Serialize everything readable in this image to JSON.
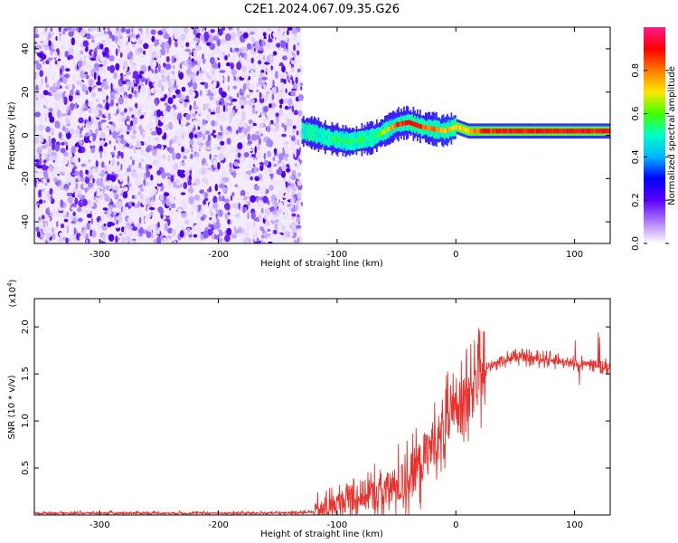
{
  "title": "C2E1.2024.067.09.35.G26",
  "colors": {
    "snr_line": "#e8302c",
    "colormap": [
      "#ffffff",
      "#e6d6ff",
      "#a070ff",
      "#5a00ff",
      "#0000ff",
      "#00b4ff",
      "#00ffb0",
      "#40ff00",
      "#ffe600",
      "#ff7a00",
      "#ff0000",
      "#ff1a8c"
    ]
  },
  "chart_data": [
    {
      "type": "heatmap",
      "title": "",
      "xlabel": "Height of straight line (km)",
      "ylabel": "Frequency (Hz)",
      "xlim": [
        -355,
        130
      ],
      "ylim": [
        -50,
        50
      ],
      "xticks": [
        -300,
        -200,
        -100,
        0,
        100
      ],
      "yticks": [
        -40,
        -20,
        0,
        20,
        40
      ],
      "colorbar": {
        "label": "Normalized spectral amplitude",
        "range": [
          0,
          1
        ],
        "ticks": [
          0.0,
          0.2,
          0.4,
          0.6,
          0.8
        ]
      },
      "noise_region_x": [
        -355,
        -130
      ],
      "ridge": {
        "x": [
          -130,
          -120,
          -110,
          -100,
          -90,
          -80,
          -70,
          -60,
          -50,
          -40,
          -30,
          -20,
          -10,
          0,
          10,
          20,
          40,
          60,
          80,
          100,
          120,
          130
        ],
        "freq": [
          2,
          1,
          -1,
          -2,
          -3,
          -2,
          -1,
          2,
          5,
          6,
          4,
          3,
          2,
          4,
          2,
          2,
          2,
          2,
          2,
          2,
          2,
          2
        ],
        "amplitude": [
          0.45,
          0.5,
          0.5,
          0.55,
          0.55,
          0.55,
          0.55,
          0.65,
          0.85,
          0.9,
          0.85,
          0.8,
          0.75,
          0.7,
          0.75,
          0.85,
          0.9,
          0.9,
          0.9,
          0.9,
          0.9,
          0.9
        ]
      }
    },
    {
      "type": "line",
      "title": "",
      "xlabel": "Height of straight line (km)",
      "ylabel": "SNR (10 * v/v)",
      "y_scale_label": "(x10",
      "y_scale_exp": "4",
      "y_scale_close": ")",
      "xlim": [
        -355,
        130
      ],
      "ylim": [
        0,
        2.3
      ],
      "xticks": [
        -300,
        -200,
        -100,
        0,
        100
      ],
      "yticks": [
        0.5,
        1.0,
        1.5,
        2.0
      ],
      "yticklabels": [
        "0.5",
        "1.0",
        "1.5",
        "2.0"
      ],
      "series": [
        {
          "x": [
            -355,
            -300,
            -250,
            -200,
            -150,
            -120,
            -110,
            -100,
            -90,
            -80,
            -70,
            -60,
            -50,
            -40,
            -30,
            -20,
            -10,
            0,
            5,
            10,
            20,
            30,
            40,
            50,
            60,
            70,
            80,
            90,
            100,
            110,
            120,
            130
          ],
          "values": [
            0.02,
            0.02,
            0.02,
            0.02,
            0.02,
            0.03,
            0.06,
            0.12,
            0.18,
            0.22,
            0.2,
            0.25,
            0.3,
            0.4,
            0.55,
            0.75,
            0.9,
            1.1,
            1.3,
            1.2,
            1.45,
            1.6,
            1.65,
            1.68,
            1.67,
            1.66,
            1.65,
            1.63,
            1.6,
            1.62,
            1.6,
            1.58
          ]
        }
      ]
    }
  ]
}
